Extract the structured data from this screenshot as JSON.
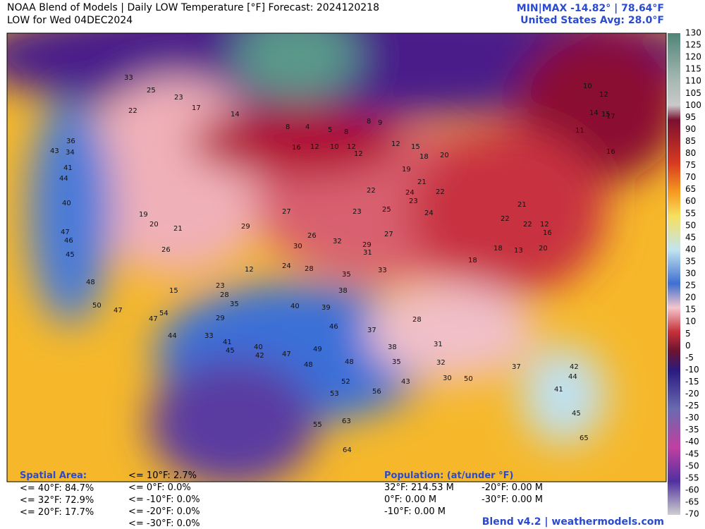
{
  "header": {
    "title": "NOAA Blend of Models | Daily LOW Temperature [°F] Forecast: 2024120218",
    "subtitle": "LOW for Wed 04DEC2024",
    "minmax": "MIN|MAX -14.82° | 78.64°F",
    "average": "United States Avg: 28.0°F"
  },
  "colorbar": {
    "ticks": [
      130,
      125,
      120,
      115,
      110,
      105,
      100,
      95,
      90,
      85,
      80,
      75,
      70,
      65,
      60,
      55,
      50,
      45,
      40,
      35,
      30,
      25,
      20,
      15,
      10,
      5,
      0,
      -5,
      -10,
      -15,
      -20,
      -25,
      -30,
      -35,
      -40,
      -45,
      -50,
      -55,
      -60,
      -65,
      -70
    ]
  },
  "map_labels": [
    33,
    23,
    25,
    22,
    17,
    14,
    8,
    4,
    5,
    8,
    8,
    9,
    12,
    10,
    12,
    16,
    12,
    12,
    15,
    18,
    20,
    19,
    21,
    22,
    24,
    25,
    22,
    23,
    24,
    23,
    22,
    21,
    18,
    16,
    12,
    10,
    12,
    14,
    15,
    17,
    11,
    16,
    36,
    34,
    43,
    41,
    44,
    40,
    47,
    46,
    45,
    48,
    50,
    47,
    54,
    47,
    44,
    33,
    41,
    45,
    40,
    42,
    47,
    48,
    52,
    53,
    56,
    43,
    55,
    63,
    64,
    38,
    35,
    32,
    30,
    50,
    37,
    42,
    44,
    45,
    65,
    41,
    35,
    28,
    29,
    26,
    21,
    19,
    20,
    24,
    26,
    30,
    28,
    32,
    35,
    33,
    31,
    27,
    29,
    39,
    40,
    49,
    48,
    46,
    38,
    37,
    31,
    28,
    22,
    18,
    13,
    20,
    29,
    12,
    15,
    23,
    27
  ],
  "spatial": {
    "title": "Spatial Area:",
    "items": [
      "<= 40°F: 84.7%",
      "<= 32°F: 72.9%",
      "<= 20°F: 17.7%",
      "<= 10°F: 2.7%",
      "<= 0°F: 0.0%",
      "<= -10°F: 0.0%",
      "<= -20°F: 0.0%",
      "<= -30°F: 0.0%"
    ]
  },
  "population": {
    "title": "Population: (at/under °F)",
    "items": [
      "32°F: 214.53 M",
      "0°F: 0.00 M",
      "-10°F: 0.00 M",
      "-20°F: 0.00 M",
      "-30°F: 0.00 M"
    ]
  },
  "footer": "Blend v4.2 | weathermodels.com"
}
